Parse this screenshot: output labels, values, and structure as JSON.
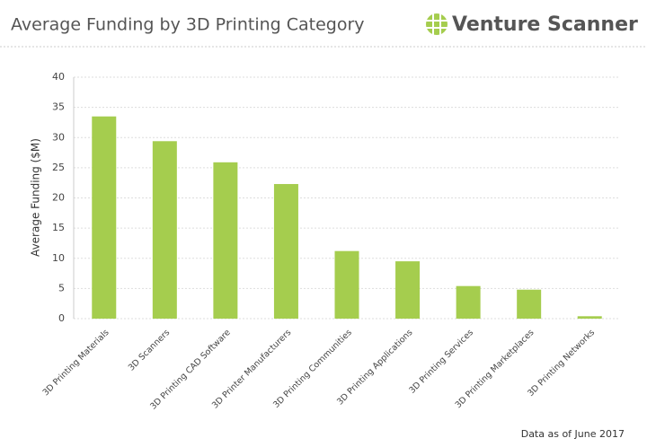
{
  "header": {
    "brand": "Venture Scanner"
  },
  "chart_data": {
    "type": "bar",
    "title": "Average Funding by 3D Printing Category",
    "y_label": "Average Funding ($M)",
    "footnote": "Data as of June 2017",
    "categories": [
      "3D Printing Materials",
      "3D Scanners",
      "3D Printing CAD Software",
      "3D Printer Manufacturers",
      "3D Printing Communities",
      "3D Printing Applications",
      "3D Printing Services",
      "3D Printing Marketplaces",
      "3D Printing Networks"
    ],
    "values": [
      33.5,
      29.4,
      25.9,
      22.3,
      11.2,
      9.5,
      5.4,
      4.8,
      0.4
    ],
    "color": "#a5cd4e",
    "ylim": [
      0,
      40
    ],
    "yticks": [
      0,
      5,
      10,
      15,
      20,
      25,
      30,
      35,
      40
    ],
    "grid": true
  }
}
